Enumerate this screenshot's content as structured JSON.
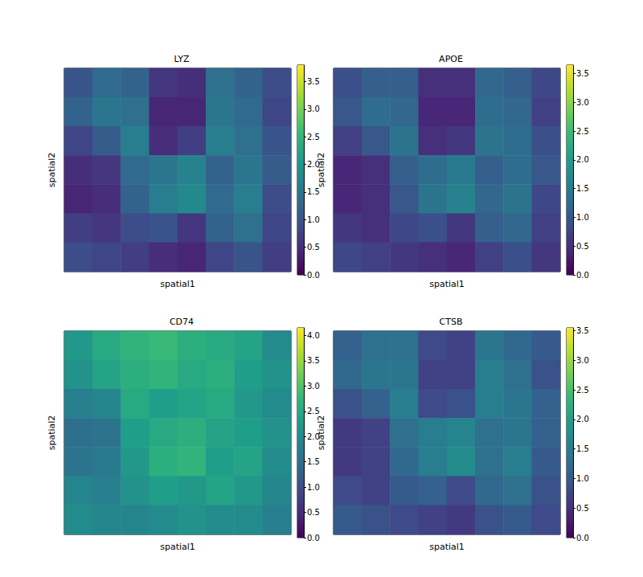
{
  "chart_data": [
    {
      "type": "heatmap",
      "title": "LYZ",
      "xlabel": "spatial1",
      "ylabel": "spatial2",
      "cells": [
        [
          1.0,
          1.3,
          1.2,
          0.6,
          0.5,
          1.4,
          1.2,
          0.9
        ],
        [
          1.2,
          1.5,
          1.4,
          0.4,
          0.4,
          1.5,
          1.3,
          0.8
        ],
        [
          0.8,
          1.1,
          1.6,
          0.5,
          0.7,
          1.6,
          1.4,
          1.0
        ],
        [
          0.5,
          0.6,
          1.3,
          1.5,
          1.7,
          1.2,
          1.5,
          1.1
        ],
        [
          0.4,
          0.5,
          1.2,
          1.6,
          1.8,
          1.3,
          1.6,
          0.9
        ],
        [
          0.7,
          0.6,
          0.9,
          1.0,
          0.6,
          1.2,
          1.4,
          0.8
        ],
        [
          0.9,
          0.8,
          0.7,
          0.5,
          0.4,
          0.8,
          1.0,
          0.7
        ]
      ],
      "colorbar_range": [
        0,
        3.8
      ],
      "colorbar_ticks": [
        {
          "value": 0,
          "label": "0.0"
        },
        {
          "value": 0.5,
          "label": "0.5"
        },
        {
          "value": 1,
          "label": "1.0"
        },
        {
          "value": 1.5,
          "label": "1.5"
        },
        {
          "value": 2,
          "label": "2.0"
        },
        {
          "value": 2.5,
          "label": "2.5"
        },
        {
          "value": 3,
          "label": "3.0"
        },
        {
          "value": 3.5,
          "label": "3.5"
        }
      ]
    },
    {
      "type": "heatmap",
      "title": "APOE",
      "xlabel": "spatial1",
      "ylabel": "spatial2",
      "cells": [
        [
          0.9,
          1.1,
          1.1,
          0.5,
          0.5,
          1.2,
          1.1,
          0.8
        ],
        [
          1.0,
          1.3,
          1.2,
          0.4,
          0.4,
          1.3,
          1.2,
          0.7
        ],
        [
          0.7,
          1.0,
          1.4,
          0.5,
          0.6,
          1.4,
          1.3,
          0.9
        ],
        [
          0.4,
          0.5,
          1.1,
          1.3,
          1.5,
          1.1,
          1.3,
          1.0
        ],
        [
          0.4,
          0.5,
          1.0,
          1.4,
          1.6,
          1.2,
          1.4,
          0.8
        ],
        [
          0.6,
          0.5,
          0.8,
          0.9,
          0.6,
          1.1,
          1.2,
          0.7
        ],
        [
          0.8,
          0.7,
          0.6,
          0.5,
          0.4,
          0.7,
          0.9,
          0.6
        ]
      ],
      "colorbar_range": [
        0,
        3.65
      ],
      "colorbar_ticks": [
        {
          "value": 0,
          "label": "0.0"
        },
        {
          "value": 0.5,
          "label": "0.5"
        },
        {
          "value": 1,
          "label": "1.0"
        },
        {
          "value": 1.5,
          "label": "1.5"
        },
        {
          "value": 2,
          "label": "2.0"
        },
        {
          "value": 2.5,
          "label": "2.5"
        },
        {
          "value": 3,
          "label": "3.0"
        },
        {
          "value": 3.5,
          "label": "3.5"
        }
      ]
    },
    {
      "type": "heatmap",
      "title": "CD74",
      "xlabel": "spatial1",
      "ylabel": "spatial2",
      "cells": [
        [
          2.2,
          2.5,
          2.7,
          2.8,
          2.6,
          2.5,
          2.4,
          2.0
        ],
        [
          2.1,
          2.4,
          2.6,
          2.7,
          2.5,
          2.6,
          2.3,
          2.1
        ],
        [
          1.8,
          1.9,
          2.5,
          2.3,
          2.4,
          2.5,
          2.2,
          2.0
        ],
        [
          1.5,
          1.6,
          2.3,
          2.5,
          2.6,
          2.4,
          2.3,
          2.1
        ],
        [
          1.6,
          1.7,
          2.2,
          2.6,
          2.7,
          2.3,
          2.4,
          2.0
        ],
        [
          1.9,
          1.8,
          2.1,
          2.3,
          2.2,
          2.4,
          2.2,
          1.9
        ],
        [
          2.0,
          1.9,
          1.9,
          2.0,
          2.1,
          2.0,
          2.0,
          1.8
        ]
      ],
      "colorbar_range": [
        0,
        4.15
      ],
      "colorbar_ticks": [
        {
          "value": 0,
          "label": "0.0"
        },
        {
          "value": 0.5,
          "label": "0.5"
        },
        {
          "value": 1,
          "label": "1.0"
        },
        {
          "value": 1.5,
          "label": "1.5"
        },
        {
          "value": 2,
          "label": "2.0"
        },
        {
          "value": 2.5,
          "label": "2.5"
        },
        {
          "value": 3,
          "label": "3.0"
        },
        {
          "value": 3.5,
          "label": "3.5"
        },
        {
          "value": 4,
          "label": "4.0"
        }
      ]
    },
    {
      "type": "heatmap",
      "title": "CTSB",
      "xlabel": "spatial1",
      "ylabel": "spatial2",
      "cells": [
        [
          1.1,
          1.3,
          1.3,
          0.8,
          0.7,
          1.4,
          1.2,
          1.0
        ],
        [
          1.2,
          1.4,
          1.4,
          0.7,
          0.7,
          1.5,
          1.3,
          0.9
        ],
        [
          0.9,
          1.1,
          1.5,
          0.8,
          0.9,
          1.5,
          1.4,
          1.1
        ],
        [
          0.6,
          0.7,
          1.3,
          1.5,
          1.6,
          1.3,
          1.4,
          1.1
        ],
        [
          0.6,
          0.7,
          1.2,
          1.5,
          1.7,
          1.3,
          1.5,
          1.0
        ],
        [
          0.8,
          0.7,
          1.0,
          1.1,
          0.8,
          1.2,
          1.3,
          0.9
        ],
        [
          1.0,
          0.9,
          0.8,
          0.7,
          0.6,
          0.9,
          1.0,
          0.8
        ]
      ],
      "colorbar_range": [
        0,
        3.55
      ],
      "colorbar_ticks": [
        {
          "value": 0,
          "label": "0.0"
        },
        {
          "value": 0.5,
          "label": "0.5"
        },
        {
          "value": 1,
          "label": "1.0"
        },
        {
          "value": 1.5,
          "label": "1.5"
        },
        {
          "value": 2,
          "label": "2.0"
        },
        {
          "value": 2.5,
          "label": "2.5"
        },
        {
          "value": 3,
          "label": "3.0"
        },
        {
          "value": 3.5,
          "label": "3.5"
        }
      ]
    }
  ]
}
